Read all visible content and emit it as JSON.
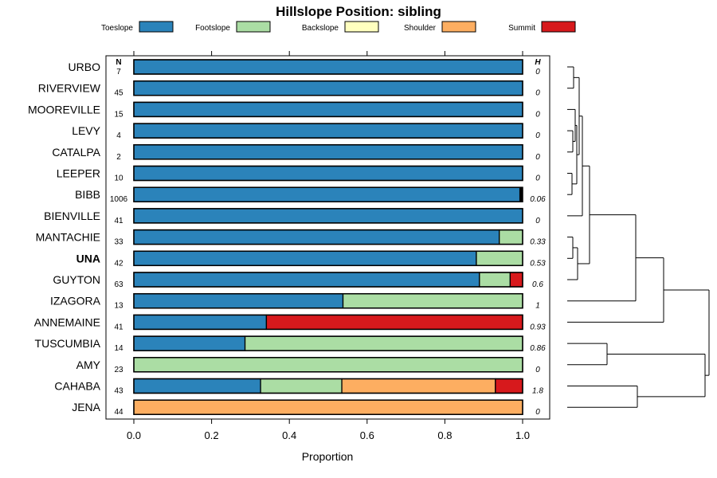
{
  "chart_data": {
    "type": "bar",
    "orientation": "horizontal",
    "stacked": true,
    "title": "Hillslope Position: sibling",
    "xlabel": "Proportion",
    "xlim": [
      0,
      1
    ],
    "xticks": [
      "0.0",
      "0.2",
      "0.4",
      "0.6",
      "0.8",
      "1.0"
    ],
    "n_header": "N",
    "h_header": "H",
    "legend": [
      {
        "name": "Toeslope",
        "color": "#2b83ba"
      },
      {
        "name": "Footslope",
        "color": "#abdda4"
      },
      {
        "name": "Backslope",
        "color": "#ffffbf"
      },
      {
        "name": "Shoulder",
        "color": "#fdae61"
      },
      {
        "name": "Summit",
        "color": "#d7191c"
      }
    ],
    "categories": [
      "URBO",
      "RIVERVIEW",
      "MOOREVILLE",
      "LEVY",
      "CATALPA",
      "LEEPER",
      "BIBB",
      "BIENVILLE",
      "MANTACHIE",
      "UNA",
      "GUYTON",
      "IZAGORA",
      "ANNEMAINE",
      "TUSCUMBIA",
      "AMY",
      "CAHABA",
      "JENA"
    ],
    "highlight": "UNA",
    "n": [
      "7",
      "45",
      "15",
      "4",
      "2",
      "10",
      "1006",
      "41",
      "33",
      "42",
      "63",
      "13",
      "41",
      "14",
      "23",
      "43",
      "44"
    ],
    "h": [
      "0",
      "0",
      "0",
      "0",
      "0",
      "0",
      "0.06",
      "0",
      "0.33",
      "0.53",
      "0.6",
      "1",
      "0.93",
      "0.86",
      "0",
      "1.8",
      "0"
    ],
    "series": [
      {
        "name": "Toeslope",
        "values": [
          1.0,
          1.0,
          1.0,
          1.0,
          1.0,
          1.0,
          0.993,
          1.0,
          0.94,
          0.881,
          0.889,
          0.538,
          0.341,
          0.286,
          0.0,
          0.326,
          0.0
        ]
      },
      {
        "name": "Footslope",
        "values": [
          0.0,
          0.0,
          0.0,
          0.0,
          0.0,
          0.0,
          0.0,
          0.0,
          0.06,
          0.119,
          0.079,
          0.462,
          0.0,
          0.714,
          1.0,
          0.209,
          0.0
        ]
      },
      {
        "name": "Backslope",
        "values": [
          0,
          0,
          0,
          0,
          0,
          0,
          0,
          0,
          0,
          0,
          0,
          0,
          0,
          0,
          0,
          0,
          0
        ]
      },
      {
        "name": "Shoulder",
        "values": [
          0.0,
          0.0,
          0.0,
          0.0,
          0.0,
          0.0,
          0.0,
          0.0,
          0.0,
          0.0,
          0.0,
          0.0,
          0.0,
          0.0,
          0.0,
          0.395,
          1.0
        ]
      },
      {
        "name": "Summit",
        "values": [
          0.0,
          0.0,
          0.0,
          0.0,
          0.0,
          0.0,
          0.0,
          0.0,
          0.0,
          0.0,
          0.032,
          0.0,
          0.659,
          0.0,
          0.0,
          0.07,
          0.0
        ]
      }
    ],
    "extra_segment": {
      "category": "BIBB",
      "value": 0.007,
      "color": "#000000"
    },
    "dendrogram": {
      "merges": [
        {
          "a": "URBO",
          "b": "RIVERVIEW",
          "height": 0.015
        },
        {
          "a": "LEVY",
          "b": "CATALPA",
          "height": 0.01
        },
        {
          "a": "LEEPER",
          "b": "BIBB",
          "height": 0.008
        },
        {
          "a": "MANTACHIE",
          "b": "UNA",
          "height": 0.015
        },
        {
          "a": "TUSCUMBIA",
          "b": "AMY",
          "height": 0.32
        },
        {
          "a": "CAHABA",
          "b": "JENA",
          "height": 0.56
        }
      ],
      "max_height": 1.0
    }
  }
}
